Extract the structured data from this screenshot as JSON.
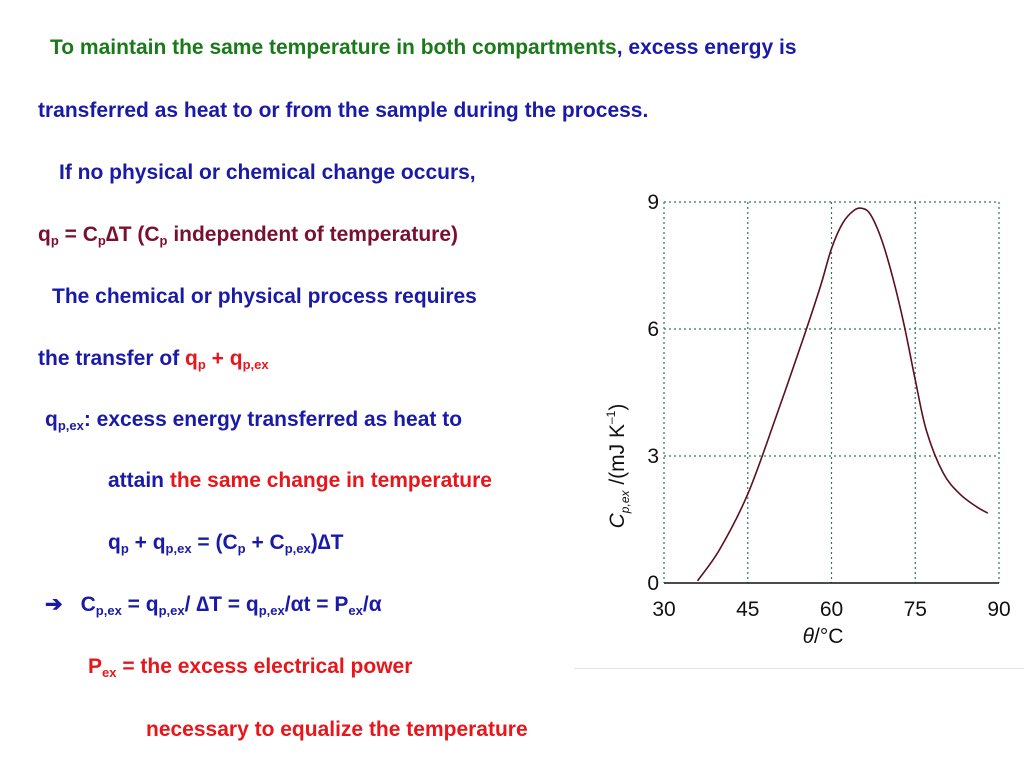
{
  "lines": {
    "l1_a": "To maintain the same temperature in both compartments",
    "l1_b": ", excess energy is",
    "l2": "transferred as heat to or from the sample during the process.",
    "l3": "If no physical or chemical change occurs,",
    "l4_q": "q",
    "l4_p1": "p",
    "l4_eq": " = C",
    "l4_p2": "p",
    "l4_delta": "∆",
    "l4_T": "T (C",
    "l4_p3": "p",
    "l4_rest": " independent of temperature)",
    "l5": "The chemical or physical process requires",
    "l6_a": "the transfer of ",
    "l6_q": "q",
    "l6_p": "p",
    "l6_plus": " + q",
    "l6_pex": "p,ex",
    "l7_q": "q",
    "l7_pex": "p,ex",
    "l7_rest": ": excess energy transferred as heat to",
    "l8_a": "attain ",
    "l8_b": "the same change in temperature",
    "l9_q": "q",
    "l9_p": "p",
    "l9_plus": " + q",
    "l9_pex": "p,ex",
    "l9_eq": " = (C",
    "l9_p2": "p",
    "l9_plus2": " + C",
    "l9_pex2": "p,ex",
    "l9_close": ")",
    "l9_delta": "∆",
    "l9_T": "T",
    "l10_arrow": "➔",
    "l10_C": "C",
    "l10_pex": "p,ex",
    "l10_eq": " = q",
    "l10_pex2": "p,ex",
    "l10_slash": "/ ",
    "l10_delta": "∆",
    "l10_T": "T = q",
    "l10_pex3": "p,ex",
    "l10_slash2": "/",
    "l10_alpha": "α",
    "l10_t": "t = P",
    "l10_ex": "ex",
    "l10_slash3": "/",
    "l10_alpha2": "α",
    "l11_P": "P",
    "l11_ex": "ex",
    "l11_rest": " = the excess electrical power",
    "l12": "necessary to equalize the temperature"
  },
  "colors": {
    "green": "#1a7a1a",
    "blue": "#1a1aa8",
    "red": "#e8161b",
    "maroon": "#7a1030",
    "grid": "#2a7a5a",
    "curve": "#5a1020"
  },
  "chart_data": {
    "type": "line",
    "title": "",
    "xlabel": "θ/°C",
    "ylabel": "C p,ex /(mJ K⁻¹)",
    "ylabel_main": "C",
    "ylabel_sub": "p,ex",
    "ylabel_rest": " /(mJ K",
    "ylabel_sup": "–1",
    "ylabel_close": ")",
    "xlabel_theta": "θ",
    "xlabel_rest": "/°C",
    "xlim": [
      30,
      90
    ],
    "ylim": [
      0,
      9
    ],
    "x_ticks": [
      "30",
      "45",
      "60",
      "75",
      "90"
    ],
    "y_ticks": [
      "0",
      "3",
      "6",
      "9"
    ],
    "x_tick_values": [
      30,
      45,
      60,
      75,
      90
    ],
    "y_tick_values": [
      0,
      3,
      6,
      9
    ],
    "grid": true,
    "series": [
      {
        "x": [
          36,
          40,
          45,
          50,
          55,
          58,
          60,
          62,
          64,
          65.5,
          67,
          69,
          71,
          73,
          75,
          77,
          80,
          83,
          86,
          88
        ],
        "y": [
          0.05,
          0.8,
          2.1,
          3.9,
          5.8,
          7.0,
          7.9,
          8.5,
          8.8,
          8.85,
          8.7,
          8.1,
          7.2,
          6.1,
          4.8,
          3.6,
          2.6,
          2.1,
          1.8,
          1.65
        ]
      }
    ]
  }
}
